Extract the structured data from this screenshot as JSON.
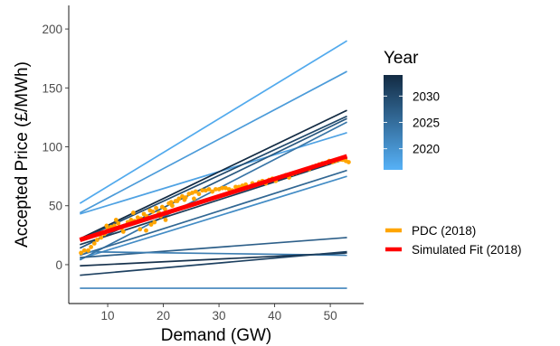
{
  "chart_data": {
    "type": "line",
    "xlabel": "Demand (GW)",
    "ylabel": "Accepted Price (£/MWh)",
    "xlim": [
      3,
      56
    ],
    "ylim": [
      -33,
      220
    ],
    "x_ticks": [
      10,
      20,
      30,
      40,
      50
    ],
    "y_ticks": [
      0,
      50,
      100,
      150,
      200
    ],
    "grid": false,
    "colorbar": {
      "title": "Year",
      "range": [
        2016,
        2034
      ],
      "ticks": [
        2020,
        2025,
        2030
      ],
      "color_low": "#56B1F7",
      "color_high": "#132B43"
    },
    "scenario_lines": [
      {
        "year": 2017,
        "x": [
          5,
          53
        ],
        "y": [
          52,
          190
        ]
      },
      {
        "year": 2019,
        "x": [
          5,
          53
        ],
        "y": [
          44,
          164
        ]
      },
      {
        "year": 2018,
        "x": [
          5,
          53
        ],
        "y": [
          43,
          112
        ]
      },
      {
        "year": 2034,
        "x": [
          5,
          53
        ],
        "y": [
          22,
          131
        ]
      },
      {
        "year": 2028,
        "x": [
          5,
          53
        ],
        "y": [
          14,
          124
        ]
      },
      {
        "year": 2030,
        "x": [
          5,
          53
        ],
        "y": [
          21,
          126
        ]
      },
      {
        "year": 2024,
        "x": [
          5,
          53
        ],
        "y": [
          4,
          121
        ]
      },
      {
        "year": 2032,
        "x": [
          5,
          53
        ],
        "y": [
          17,
          90
        ]
      },
      {
        "year": 2026,
        "x": [
          5,
          53
        ],
        "y": [
          8,
          80
        ]
      },
      {
        "year": 2021,
        "x": [
          5,
          53
        ],
        "y": [
          5,
          75
        ]
      },
      {
        "year": 2027,
        "x": [
          5,
          53
        ],
        "y": [
          6,
          23
        ]
      },
      {
        "year": 2023,
        "x": [
          5,
          53
        ],
        "y": [
          11,
          8
        ]
      },
      {
        "year": 2033,
        "x": [
          5,
          53
        ],
        "y": [
          -1,
          10
        ]
      },
      {
        "year": 2031,
        "x": [
          5,
          53
        ],
        "y": [
          -9,
          11
        ]
      },
      {
        "year": 2022,
        "x": [
          5,
          53
        ],
        "y": [
          -20,
          -20
        ]
      }
    ],
    "series": [
      {
        "name": "PDC (2018)",
        "type": "scatter",
        "color": "#FFA500",
        "x": [
          5.2,
          5.8,
          6.5,
          7.0,
          7.6,
          8.1,
          8.8,
          9.4,
          10.0,
          10.6,
          11.2,
          11.9,
          12.5,
          13.0,
          13.6,
          14.2,
          14.8,
          15.4,
          16.0,
          16.5,
          17.0,
          17.6,
          18.1,
          18.7,
          19.2,
          19.8,
          20.3,
          21.0,
          21.6,
          22.2,
          22.8,
          23.4,
          24.0,
          24.6,
          25.2,
          25.8,
          26.4,
          27.0,
          27.6,
          28.2,
          28.8,
          29.4,
          30.0,
          30.6,
          31.2,
          31.8,
          32.4,
          33.0,
          33.6,
          34.2,
          34.8,
          35.4,
          36.0,
          36.6,
          37.2,
          37.8,
          38.4,
          39.0,
          39.6,
          40.2,
          40.8,
          41.4,
          42.0,
          42.6,
          43.2,
          43.8,
          44.4,
          45.0,
          45.6,
          46.2,
          46.8,
          47.4,
          48.0,
          48.6,
          49.2,
          49.8,
          50.4,
          51.0,
          51.6,
          52.2,
          52.8,
          53.3,
          9.8,
          11.5,
          12.8,
          14.6,
          15.8,
          16.9,
          17.8,
          18.4,
          19.5,
          20.4,
          21.4,
          22.5,
          23.8,
          25.5
        ],
        "y": [
          10,
          12,
          12,
          15,
          18,
          21,
          23,
          26,
          30,
          32,
          33,
          35,
          31,
          33,
          36,
          38,
          37,
          40,
          39,
          43,
          41,
          46,
          45,
          48,
          44,
          49,
          47,
          52,
          50,
          54,
          56,
          58,
          57,
          60,
          61,
          62,
          60,
          63,
          63,
          64,
          62,
          64,
          64,
          65,
          65,
          64,
          63,
          66,
          66,
          67,
          68,
          66,
          69,
          68,
          70,
          71,
          69,
          72,
          73,
          71,
          74,
          75,
          76,
          74,
          77,
          78,
          79,
          80,
          81,
          81,
          83,
          84,
          85,
          86,
          86,
          88,
          87,
          88,
          89,
          89,
          88,
          87,
          33,
          38,
          28,
          44,
          30,
          29,
          34,
          36,
          41,
          38,
          53,
          54,
          55,
          56
        ]
      },
      {
        "name": "Simulated Fit (2018)",
        "type": "line",
        "color": "#FF0000",
        "x": [
          5,
          53
        ],
        "y": [
          21,
          92
        ]
      }
    ]
  }
}
